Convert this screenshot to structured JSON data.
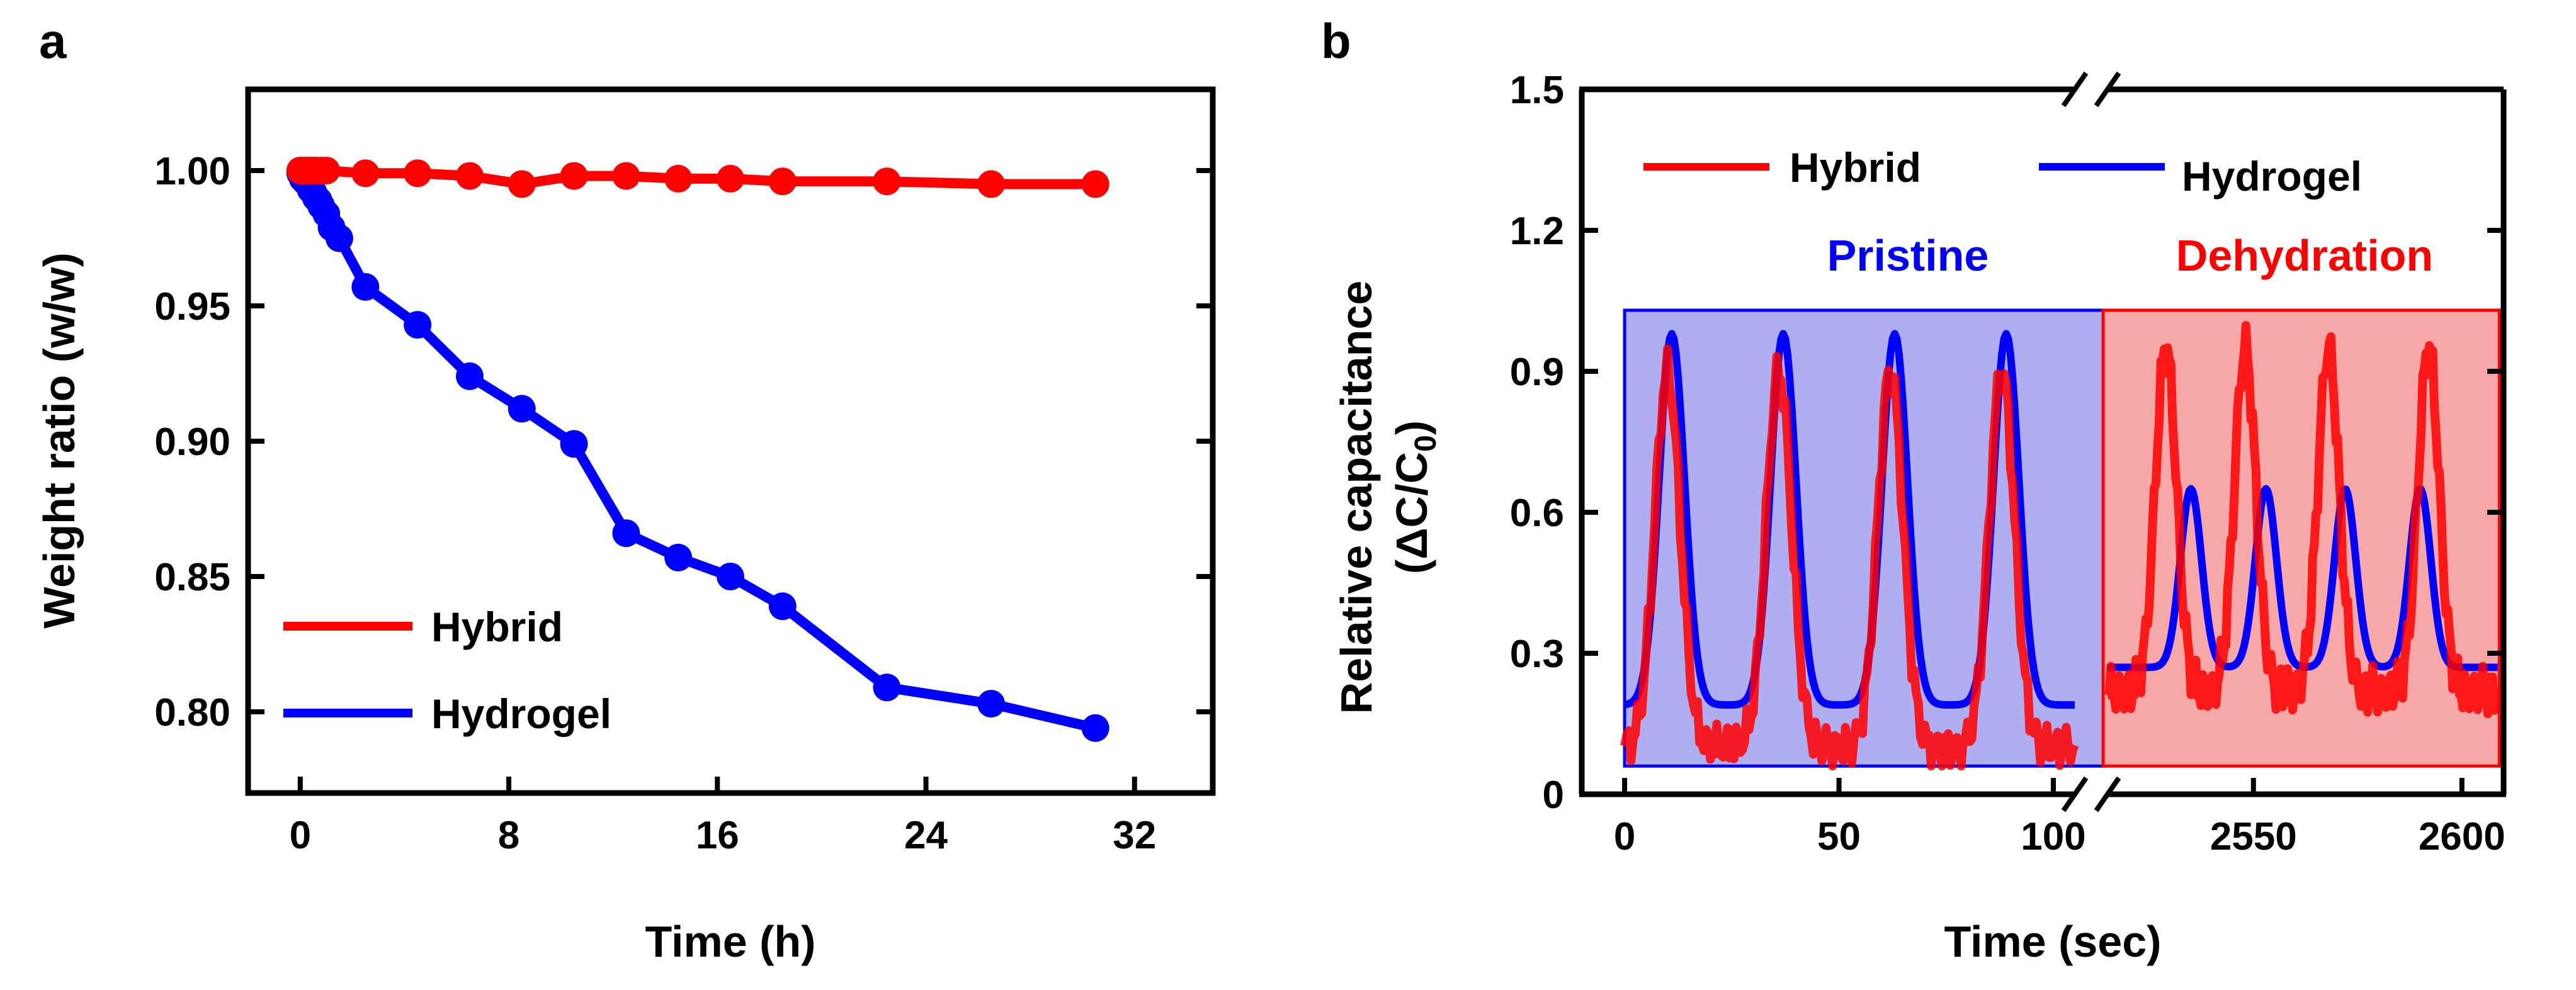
{
  "panels": {
    "a": "a",
    "b": "b"
  },
  "chart_data": [
    {
      "type": "line",
      "panel": "a",
      "xlabel": "Time (h)",
      "ylabel": "Weight ratio (w/w)",
      "xlim": [
        -2,
        35
      ],
      "ylim": [
        0.77,
        1.03
      ],
      "xticks": [
        0,
        8,
        16,
        24,
        32
      ],
      "yticks": [
        0.8,
        0.85,
        0.9,
        0.95,
        1.0
      ],
      "xtick_labels": [
        "0",
        "8",
        "16",
        "24",
        "32"
      ],
      "ytick_labels": [
        "0.80",
        "0.85",
        "0.90",
        "0.95",
        "1.00"
      ],
      "legend_position": "bottom-left",
      "series": [
        {
          "name": "Hybrid",
          "color": "#ff0000",
          "x": [
            0,
            0.1,
            0.2,
            0.3,
            0.4,
            0.5,
            0.6,
            0.8,
            1.0,
            2.5,
            4.5,
            6.5,
            8.5,
            10.5,
            12.5,
            14.5,
            16.5,
            18.5,
            22.5,
            26.5,
            30.5
          ],
          "y": [
            1.0,
            1.0,
            1.0,
            1.0,
            1.0,
            1.0,
            1.0,
            1.0,
            1.0,
            0.999,
            0.999,
            0.998,
            0.995,
            0.998,
            0.998,
            0.997,
            0.997,
            0.996,
            0.996,
            0.995,
            0.995
          ]
        },
        {
          "name": "Hydrogel",
          "color": "#0000ff",
          "x": [
            0,
            0.1,
            0.2,
            0.3,
            0.4,
            0.5,
            0.6,
            0.7,
            0.8,
            1.0,
            1.2,
            1.5,
            2.5,
            4.5,
            6.5,
            8.5,
            10.5,
            12.5,
            14.5,
            16.5,
            18.5,
            22.5,
            26.5,
            30.5
          ],
          "y": [
            0.999,
            0.997,
            0.996,
            0.995,
            0.993,
            0.992,
            0.99,
            0.989,
            0.987,
            0.984,
            0.979,
            0.975,
            0.957,
            0.943,
            0.924,
            0.912,
            0.899,
            0.866,
            0.857,
            0.85,
            0.839,
            0.809,
            0.803,
            0.794
          ]
        }
      ]
    },
    {
      "type": "line",
      "panel": "b",
      "xlabel": "Time (sec)",
      "ylabel_line1": "Relative capacitance",
      "ylabel_line2": "(ΔC/C",
      "ylabel_sub": "0",
      "ylabel_close": ")",
      "ylim": [
        0,
        1.5
      ],
      "yticks": [
        0,
        0.3,
        0.6,
        0.9,
        1.2,
        1.5
      ],
      "ytick_labels": [
        "0",
        "0.3",
        "0.6",
        "0.9",
        "1.2",
        "1.5"
      ],
      "xtick_labels": [
        "0",
        "50",
        "100",
        "2550",
        "2600"
      ],
      "axis_break": true,
      "segments": [
        {
          "xlim": [
            -10,
            105
          ],
          "ticks": [
            0,
            50,
            100
          ]
        },
        {
          "xlim": [
            2515,
            2610
          ],
          "ticks": [
            2550,
            2600
          ]
        }
      ],
      "legend_position": "top",
      "regions": [
        {
          "label": "Pristine",
          "color": "#0000ff",
          "fill": "#aeaef0",
          "y_range": [
            0.06,
            1.03
          ]
        },
        {
          "label": "Dehydration",
          "color": "#ff0000",
          "fill": "#f6a8a8",
          "y_range": [
            0.06,
            1.03
          ]
        }
      ],
      "series": [
        {
          "name": "Hybrid",
          "color": "#ff0000",
          "peaks_pristine": {
            "times": [
              10,
              36,
              62,
              88
            ],
            "max": 0.9,
            "min": 0.1
          },
          "peaks_dehydration": {
            "times": [
              2529,
              2548,
              2568,
              2592
            ],
            "max": 0.95,
            "min": 0.22
          }
        },
        {
          "name": "Hydrogel",
          "color": "#0000ff",
          "peaks_pristine": {
            "times": [
              11,
              37,
              63,
              89
            ],
            "max": 0.98,
            "min": 0.19
          },
          "peaks_dehydration": {
            "times": [
              2535,
              2553,
              2572,
              2590
            ],
            "max": 0.65,
            "min": 0.27
          }
        }
      ]
    }
  ]
}
